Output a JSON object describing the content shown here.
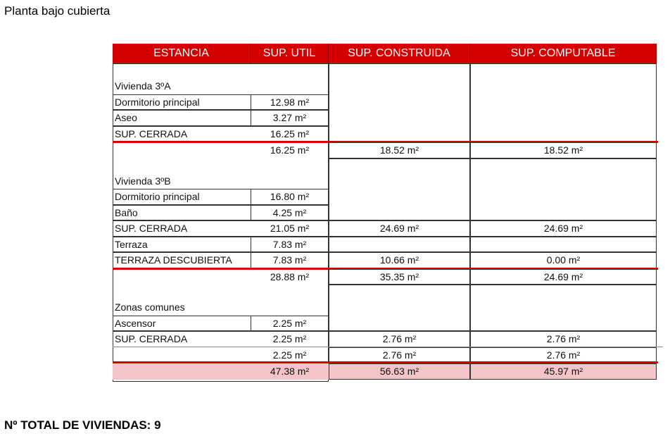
{
  "title": "Planta bajo cubierta",
  "table": {
    "headers": [
      "ESTANCIA",
      "SUP. UTIL",
      "SUP. CONSTRUIDA",
      "SUP. COMPUTABLE"
    ],
    "header_color": "#d40000",
    "total_row_color": "#f3c4c8",
    "blocks": [
      {
        "name": "Vivienda 3ºA",
        "rows": [
          {
            "label": "Dormitorio principal",
            "util": "12.98 m²"
          },
          {
            "label": "Aseo",
            "util": "3.27 m²"
          },
          {
            "label": "SUP. CERRADA",
            "util": "16.25 m²"
          }
        ],
        "subtotal": {
          "util": "16.25 m²",
          "construida": "18.52 m²",
          "computable": "18.52 m²"
        }
      },
      {
        "name": "Vivienda 3ºB",
        "rows": [
          {
            "label": "Dormitorio principal",
            "util": "16.80 m²"
          },
          {
            "label": "Baño",
            "util": "4.25 m²"
          },
          {
            "label": "SUP. CERRADA",
            "util": "21.05 m²",
            "construida": "24.69 m²",
            "computable": "24.69 m²"
          },
          {
            "label": "Terraza",
            "util": "7.83 m²"
          },
          {
            "label": "TERRAZA DESCUBIERTA",
            "util": "7.83 m²",
            "construida": "10.66 m²",
            "computable": "0.00 m²"
          }
        ],
        "subtotal": {
          "util": "28.88 m²",
          "construida": "35.35 m²",
          "computable": "24.69 m²"
        }
      },
      {
        "name": "Zonas comunes",
        "rows": [
          {
            "label": "Ascensor",
            "util": "2.25 m²"
          },
          {
            "label": "SUP. CERRADA",
            "util": "2.25 m²",
            "construida": "2.76 m²",
            "computable": "2.76 m²"
          }
        ],
        "subtotal": {
          "util": "2.25 m²",
          "construida": "2.76 m²",
          "computable": "2.76 m²"
        }
      }
    ],
    "total": {
      "util": "47.38 m²",
      "construida": "56.63 m²",
      "computable": "45.97 m²"
    }
  },
  "footer": "Nº TOTAL DE VIVIENDAS: 9"
}
